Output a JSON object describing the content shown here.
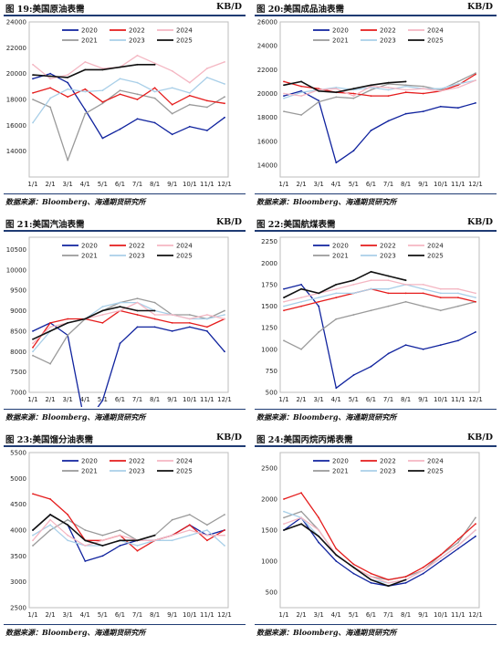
{
  "colors": {
    "2020": "#10239e",
    "2021": "#9a9a9a",
    "2022": "#e51c1c",
    "2023": "#a9cfe8",
    "2024": "#f4b6c2",
    "2025": "#111111"
  },
  "panels": [
    {
      "title": "图 19:美国原油表需",
      "unit": "KB/D",
      "source": "数据来源：Bloomberg、海通期货研究所",
      "chart_data": {
        "type": "line",
        "x_ticks": [
          "1/1",
          "2/1",
          "3/1",
          "4/1",
          "5/1",
          "6/1",
          "7/1",
          "8/1",
          "9/1",
          "10/1",
          "11/1",
          "12/1"
        ],
        "y_ticks": [
          "14000",
          "16000",
          "18000",
          "20000",
          "22000",
          "24000"
        ],
        "ylim": [
          12000,
          24000
        ],
        "legend": [
          "2020",
          "2021",
          "2022",
          "2023",
          "2024",
          "2025"
        ],
        "series": [
          {
            "name": "2020",
            "values": [
              19600,
              20000,
              19300,
              17200,
              15000,
              15700,
              16500,
              16200,
              15300,
              15900,
              15600,
              16600
            ]
          },
          {
            "name": "2021",
            "values": [
              18000,
              17400,
              13300,
              16900,
              17700,
              18700,
              18400,
              18100,
              16900,
              17600,
              17400,
              18200
            ]
          },
          {
            "name": "2022",
            "values": [
              18500,
              18900,
              18200,
              18800,
              17800,
              18400,
              18000,
              18900,
              17600,
              18300,
              17900,
              17700
            ]
          },
          {
            "name": "2023",
            "values": [
              16200,
              18100,
              18800,
              18600,
              18700,
              19600,
              19300,
              18600,
              18900,
              18500,
              19700,
              19200
            ]
          },
          {
            "name": "2024",
            "values": [
              20700,
              19600,
              19900,
              20900,
              20400,
              20500,
              21400,
              20800,
              20200,
              19300,
              20400,
              20900
            ]
          },
          {
            "name": "2025",
            "values": [
              19900,
              19800,
              19700,
              20300,
              20300,
              20500,
              20700,
              20700,
              null,
              null,
              null,
              null
            ]
          }
        ]
      }
    },
    {
      "title": "图 20:美国成品油表需",
      "unit": "KB/D",
      "source": "数据来源：Bloomberg、海通期货研究所",
      "chart_data": {
        "type": "line",
        "x_ticks": [
          "1/1",
          "2/1",
          "3/1",
          "4/1",
          "5/1",
          "6/1",
          "7/1",
          "8/1",
          "9/1",
          "10/1",
          "11/1",
          "12/1"
        ],
        "y_ticks": [
          "14000",
          "16000",
          "18000",
          "20000",
          "22000",
          "24000",
          "26000"
        ],
        "ylim": [
          13000,
          26000
        ],
        "legend": [
          "2020",
          "2021",
          "2022",
          "2023",
          "2024",
          "2025"
        ],
        "series": [
          {
            "name": "2020",
            "values": [
              19800,
              20200,
              19400,
              14200,
              15200,
              16900,
              17700,
              18300,
              18500,
              18900,
              18800,
              19200
            ]
          },
          {
            "name": "2021",
            "values": [
              18500,
              18200,
              19300,
              19700,
              19600,
              20300,
              20800,
              20700,
              20600,
              20300,
              21000,
              21700
            ]
          },
          {
            "name": "2022",
            "values": [
              21000,
              20600,
              20400,
              20100,
              20000,
              19800,
              19800,
              20100,
              20000,
              20200,
              20700,
              21600
            ]
          },
          {
            "name": "2023",
            "values": [
              19600,
              20100,
              20300,
              20500,
              20300,
              20500,
              20300,
              20600,
              20400,
              20400,
              20800,
              21100
            ]
          },
          {
            "name": "2024",
            "values": [
              20000,
              19800,
              20300,
              20400,
              19800,
              20600,
              20500,
              20300,
              20400,
              20200,
              20500,
              21100
            ]
          },
          {
            "name": "2025",
            "values": [
              20700,
              21000,
              20200,
              20100,
              20400,
              20700,
              20900,
              21000,
              null,
              null,
              null,
              null
            ]
          }
        ]
      }
    },
    {
      "title": "图 21:美国汽油表需",
      "unit": "KB/D",
      "source": "数据来源：Bloomberg、海通期货研究所",
      "chart_data": {
        "type": "line",
        "x_ticks": [
          "1/1",
          "2/1",
          "3/1",
          "4/1",
          "5/1",
          "6/1",
          "7/1",
          "8/1",
          "9/1",
          "10/1",
          "11/1",
          "12/1"
        ],
        "y_ticks": [
          "7000",
          "7500",
          "8000",
          "8500",
          "9000",
          "9500",
          "10000",
          "10500"
        ],
        "ylim": [
          7000,
          10800
        ],
        "legend": [
          "2020",
          "2021",
          "2022",
          "2023",
          "2024",
          "2025"
        ],
        "series": [
          {
            "name": "2020",
            "values": [
              8500,
              8700,
              8400,
              6200,
              6800,
              8200,
              8600,
              8600,
              8500,
              8600,
              8500,
              8000
            ]
          },
          {
            "name": "2021",
            "values": [
              7900,
              7700,
              8400,
              8800,
              9000,
              9200,
              9300,
              9200,
              8900,
              8900,
              8800,
              9000
            ]
          },
          {
            "name": "2022",
            "values": [
              8100,
              8700,
              8800,
              8800,
              8700,
              9000,
              8900,
              8800,
              8700,
              8700,
              8600,
              8800
            ]
          },
          {
            "name": "2023",
            "values": [
              8000,
              8500,
              8700,
              8800,
              9100,
              9200,
              9200,
              9000,
              8900,
              8800,
              8800,
              8900
            ]
          },
          {
            "name": "2024",
            "values": [
              8200,
              8600,
              8700,
              8800,
              8900,
              9000,
              9200,
              8900,
              8900,
              8800,
              8900,
              8800
            ]
          },
          {
            "name": "2025",
            "values": [
              8300,
              8500,
              8700,
              8800,
              9000,
              9100,
              9000,
              9000,
              null,
              null,
              null,
              null
            ]
          }
        ]
      }
    },
    {
      "title": "图 22:美国航煤表需",
      "unit": "KB/D",
      "source": "数据来源：Bloomberg、海通期货研究所",
      "chart_data": {
        "type": "line",
        "x_ticks": [
          "1/1",
          "2/1",
          "3/1",
          "4/1",
          "5/1",
          "6/1",
          "7/1",
          "8/1",
          "9/1",
          "10/1",
          "11/1",
          "12/1"
        ],
        "y_ticks": [
          "500",
          "750",
          "1000",
          "1250",
          "1500",
          "1750",
          "2000",
          "2250"
        ],
        "ylim": [
          500,
          2300
        ],
        "legend": [
          "2020",
          "2021",
          "2022",
          "2023",
          "2024",
          "2025"
        ],
        "series": [
          {
            "name": "2020",
            "values": [
              1700,
              1750,
              1500,
              550,
              700,
              800,
              950,
              1050,
              1000,
              1050,
              1100,
              1200
            ]
          },
          {
            "name": "2021",
            "values": [
              1100,
              1000,
              1200,
              1350,
              1400,
              1450,
              1500,
              1550,
              1500,
              1450,
              1500,
              1550
            ]
          },
          {
            "name": "2022",
            "values": [
              1450,
              1500,
              1550,
              1600,
              1650,
              1700,
              1650,
              1650,
              1650,
              1600,
              1600,
              1550
            ]
          },
          {
            "name": "2023",
            "values": [
              1500,
              1550,
              1600,
              1650,
              1650,
              1700,
              1700,
              1750,
              1700,
              1650,
              1650,
              1600
            ]
          },
          {
            "name": "2024",
            "values": [
              1550,
              1600,
              1650,
              1700,
              1750,
              1800,
              1800,
              1750,
              1750,
              1700,
              1700,
              1650
            ]
          },
          {
            "name": "2025",
            "values": [
              1600,
              1700,
              1650,
              1750,
              1800,
              1900,
              1850,
              1800,
              null,
              null,
              null,
              null
            ]
          }
        ]
      }
    },
    {
      "title": "图 23:美国馏分油表需",
      "unit": "KB/D",
      "source": "数据来源：Bloomberg、海通期货研究所",
      "chart_data": {
        "type": "line",
        "x_ticks": [
          "1/1",
          "2/1",
          "3/1",
          "4/1",
          "5/1",
          "6/1",
          "7/1",
          "8/1",
          "9/1",
          "10/1",
          "11/1",
          "12/1"
        ],
        "y_ticks": [
          "2500",
          "3000",
          "3500",
          "4000",
          "4500",
          "5000",
          "5500"
        ],
        "ylim": [
          2500,
          5500
        ],
        "legend": [
          "2020",
          "2021",
          "2022",
          "2023",
          "2024",
          "2025"
        ],
        "series": [
          {
            "name": "2020",
            "values": [
              4000,
              4300,
              4100,
              3400,
              3500,
              3700,
              3800,
              3800,
              3900,
              4100,
              3900,
              4000
            ]
          },
          {
            "name": "2021",
            "values": [
              3700,
              4000,
              4200,
              4000,
              3900,
              4000,
              3800,
              3900,
              4200,
              4300,
              4100,
              4300
            ]
          },
          {
            "name": "2022",
            "values": [
              4700,
              4600,
              4300,
              3800,
              3800,
              3900,
              3600,
              3800,
              3900,
              4100,
              3800,
              4000
            ]
          },
          {
            "name": "2023",
            "values": [
              3900,
              4100,
              3800,
              3700,
              3700,
              3800,
              3700,
              3800,
              3800,
              3900,
              4000,
              3700
            ]
          },
          {
            "name": "2024",
            "values": [
              3800,
              4200,
              3900,
              3700,
              3800,
              3900,
              3800,
              3800,
              3900,
              4000,
              3900,
              3900
            ]
          },
          {
            "name": "2025",
            "values": [
              4000,
              4300,
              4100,
              3800,
              3700,
              3800,
              3800,
              3900,
              null,
              null,
              null,
              null
            ]
          }
        ]
      }
    },
    {
      "title": "图 24:美国丙烷丙烯表需",
      "unit": "KB/D",
      "source": "数据来源：Bloomberg、海通期货研究所",
      "chart_data": {
        "type": "line",
        "x_ticks": [
          "1/1",
          "2/1",
          "3/1",
          "4/1",
          "5/1",
          "6/1",
          "7/1",
          "8/1",
          "9/1",
          "10/1",
          "11/1",
          "12/1"
        ],
        "y_ticks": [
          "500",
          "1000",
          "1500",
          "2000",
          "2500"
        ],
        "ylim": [
          250,
          2750
        ],
        "legend": [
          "2020",
          "2021",
          "2022",
          "2023",
          "2024",
          "2025"
        ],
        "series": [
          {
            "name": "2020",
            "values": [
              1500,
              1700,
              1300,
              1000,
              800,
              650,
              600,
              650,
              800,
              1000,
              1200,
              1400
            ]
          },
          {
            "name": "2021",
            "values": [
              1700,
              1800,
              1500,
              1100,
              900,
              750,
              700,
              750,
              850,
              1100,
              1300,
              1700
            ]
          },
          {
            "name": "2022",
            "values": [
              2000,
              2100,
              1700,
              1200,
              950,
              800,
              700,
              750,
              900,
              1100,
              1350,
              1600
            ]
          },
          {
            "name": "2023",
            "values": [
              1800,
              1700,
              1400,
              1100,
              900,
              700,
              650,
              700,
              850,
              1050,
              1250,
              1500
            ]
          },
          {
            "name": "2024",
            "values": [
              1600,
              1700,
              1500,
              1100,
              900,
              750,
              650,
              700,
              850,
              1050,
              1250,
              1500
            ]
          },
          {
            "name": "2025",
            "values": [
              1500,
              1600,
              1400,
              1100,
              900,
              700,
              600,
              700,
              null,
              null,
              null,
              null
            ]
          }
        ]
      }
    }
  ]
}
